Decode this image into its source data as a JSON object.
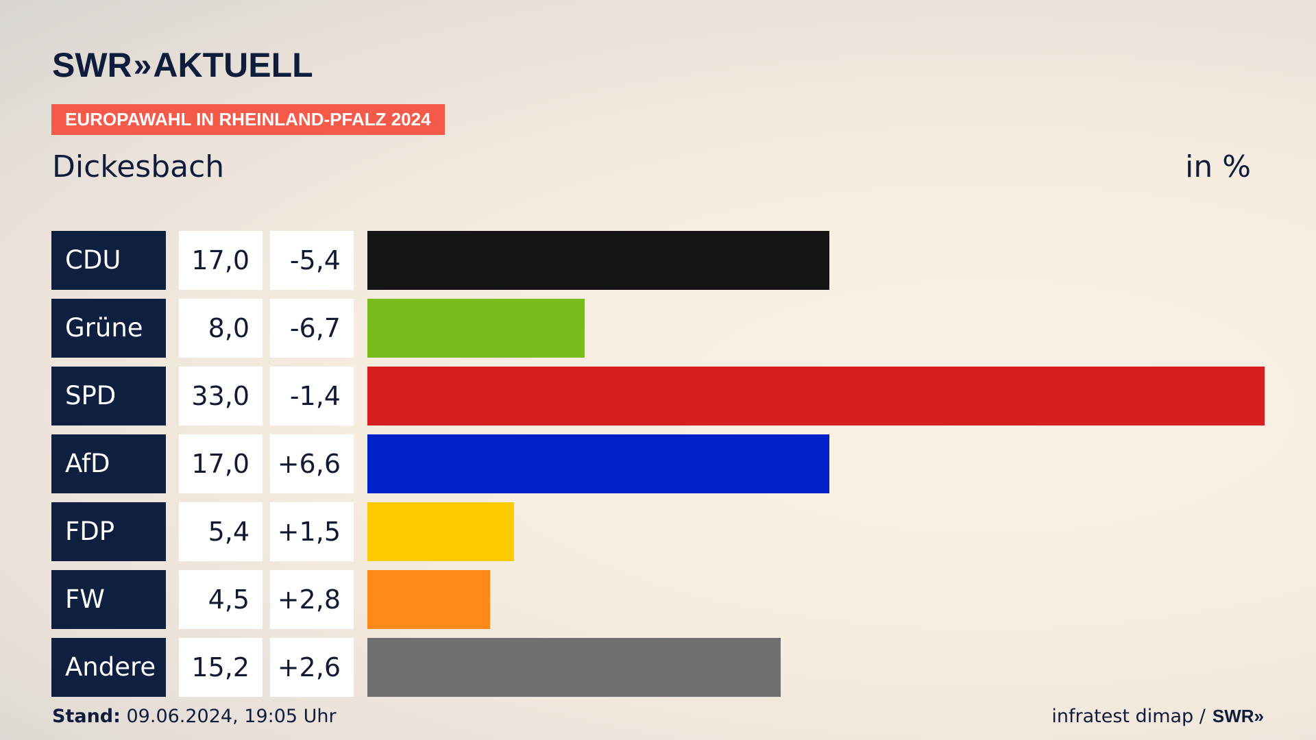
{
  "header": {
    "logo_swr": "SWR",
    "logo_chevrons": "»",
    "logo_aktuell": "AKTUELL",
    "tag": "EUROPAWAHL IN RHEINLAND-PFALZ 2024",
    "region": "Dickesbach",
    "unit": "in %"
  },
  "footer": {
    "stand_label": "Stand:",
    "stand_value": " 09.06.2024, 19:05 Uhr",
    "source": "infratest dimap /",
    "source_logo": "SWR»"
  },
  "chart_data": {
    "type": "bar",
    "orientation": "horizontal",
    "title": "Dickesbach",
    "unit": "in %",
    "xlim": [
      0,
      33.0
    ],
    "categories": [
      "CDU",
      "Grüne",
      "SPD",
      "AfD",
      "FDP",
      "FW",
      "Andere"
    ],
    "values": [
      17.0,
      8.0,
      33.0,
      17.0,
      5.4,
      4.5,
      15.2
    ],
    "value_labels": [
      "17,0",
      "8,0",
      "33,0",
      "17,0",
      "5,4",
      "4,5",
      "15,2"
    ],
    "changes": [
      -5.4,
      -6.7,
      -1.4,
      6.6,
      1.5,
      2.8,
      2.6
    ],
    "change_labels": [
      "-5,4",
      "-6,7",
      "-1,4",
      "+6,6",
      "+1,5",
      "+2,8",
      "+2,6"
    ],
    "colors": [
      "#141414",
      "#78bc1e",
      "#d71f1f",
      "#0021c8",
      "#fdcc00",
      "#fd8a18",
      "#707070"
    ]
  }
}
